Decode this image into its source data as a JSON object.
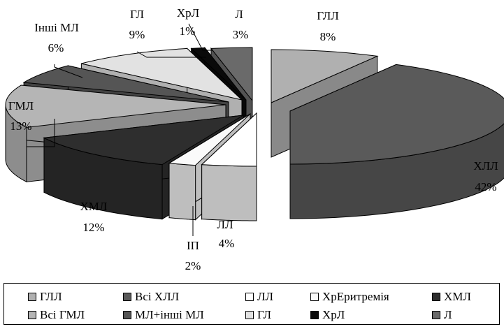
{
  "chart_data": {
    "type": "pie",
    "title": "",
    "style": "3d-exploded",
    "slices": [
      {
        "name": "ГЛЛ",
        "label": "ГЛЛ",
        "value": 8,
        "percent_label": "8%",
        "color": "#b0b0b0"
      },
      {
        "name": "Всі ХЛЛ",
        "label": "ХЛЛ",
        "value": 42,
        "percent_label": "42%",
        "color": "#5a5a5a"
      },
      {
        "name": "ЛЛ",
        "label": "ЛЛ",
        "value": 4,
        "percent_label": "4%",
        "color": "#ffffff"
      },
      {
        "name": "ХрЕритремія",
        "label": "ІП",
        "value": 2,
        "percent_label": "2%",
        "color": "#fafafa"
      },
      {
        "name": "ХМЛ",
        "label": "ХМЛ",
        "value": 12,
        "percent_label": "12%",
        "color": "#2e2e2e"
      },
      {
        "name": "Всі ГМЛ",
        "label": "ГМЛ",
        "value": 13,
        "percent_label": "13%",
        "color": "#b5b5b5"
      },
      {
        "name": "МЛ+інші МЛ",
        "label": "Інші МЛ",
        "value": 6,
        "percent_label": "6%",
        "color": "#555555"
      },
      {
        "name": "ГЛ",
        "label": "ГЛ",
        "value": 9,
        "percent_label": "9%",
        "color": "#e2e2e2"
      },
      {
        "name": "ХрЛ",
        "label": "ХрЛ",
        "value": 1,
        "percent_label": "1%",
        "color": "#0a0a0a"
      },
      {
        "name": "Л",
        "label": "Л",
        "value": 3,
        "percent_label": "3%",
        "color": "#6a6a6a"
      }
    ],
    "legend": {
      "placement": "bottom",
      "rows": [
        [
          {
            "label": "ГЛЛ",
            "color": "#b0b0b0"
          },
          {
            "label": "Всі ХЛЛ",
            "color": "#5a5a5a"
          },
          {
            "label": "ЛЛ",
            "color": "#ffffff"
          },
          {
            "label": "ХрЕритремія",
            "color": "#fafafa"
          },
          {
            "label": "ХМЛ",
            "color": "#2e2e2e"
          }
        ],
        [
          {
            "label": "Всі ГМЛ",
            "color": "#b5b5b5"
          },
          {
            "label": "МЛ+інші МЛ",
            "color": "#555555"
          },
          {
            "label": "ГЛ",
            "color": "#e2e2e2"
          },
          {
            "label": "ХрЛ",
            "color": "#0a0a0a"
          },
          {
            "label": "Л",
            "color": "#6a6a6a"
          }
        ]
      ]
    }
  }
}
